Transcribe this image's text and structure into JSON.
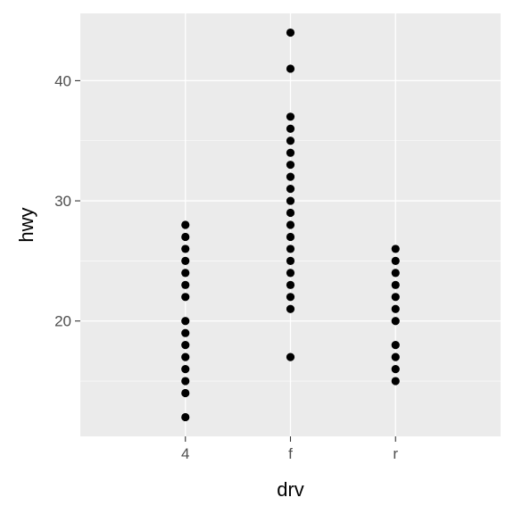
{
  "chart_data": {
    "type": "scatter",
    "title": "",
    "xlabel": "drv",
    "ylabel": "hwy",
    "categories": [
      "4",
      "f",
      "r"
    ],
    "ylim": [
      10.4,
      45.6
    ],
    "y_ticks": [
      20,
      30,
      40
    ],
    "y_minor_ticks": [
      15,
      25,
      35
    ],
    "grid": true,
    "panel_color": "#ebebeb",
    "grid_color": "#ffffff",
    "point_color": "#000000",
    "points": [
      {
        "x": "4",
        "values": [
          12,
          14,
          15,
          16,
          17,
          18,
          19,
          20,
          22,
          23,
          24,
          25,
          26,
          27,
          28
        ]
      },
      {
        "x": "f",
        "values": [
          17,
          21,
          22,
          23,
          24,
          25,
          26,
          27,
          28,
          29,
          30,
          31,
          32,
          33,
          34,
          35,
          36,
          37,
          41,
          44
        ]
      },
      {
        "x": "r",
        "values": [
          15,
          16,
          17,
          18,
          20,
          21,
          22,
          23,
          24,
          25,
          26
        ]
      }
    ]
  }
}
